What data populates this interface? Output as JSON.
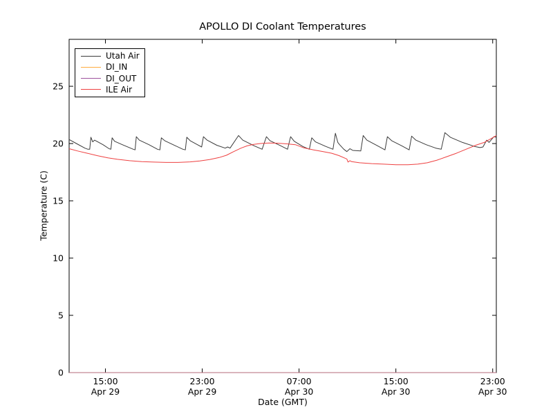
{
  "figure": {
    "background_color": "#ffffff",
    "axes_color": "#000000"
  },
  "chart_data": {
    "type": "line",
    "title": "APOLLO DI Coolant Temperatures",
    "xlabel": "Date (GMT)",
    "ylabel": "Temperature (C)",
    "grid": false,
    "legend_position": "upper left",
    "x_unit": "hours since Apr 29 00:00 GMT",
    "xlim": [
      12.0,
      47.3
    ],
    "ylim": [
      0,
      29.1
    ],
    "yticks": [
      {
        "value": 0,
        "label": "0"
      },
      {
        "value": 5,
        "label": "5"
      },
      {
        "value": 10,
        "label": "10"
      },
      {
        "value": 15,
        "label": "15"
      },
      {
        "value": 20,
        "label": "20"
      },
      {
        "value": 25,
        "label": "25"
      }
    ],
    "xticks": [
      {
        "value": 15,
        "time": "15:00",
        "date": "Apr 29"
      },
      {
        "value": 23,
        "time": "23:00",
        "date": "Apr 29"
      },
      {
        "value": 31,
        "time": "07:00",
        "date": "Apr 30"
      },
      {
        "value": 39,
        "time": "15:00",
        "date": "Apr 30"
      },
      {
        "value": 47,
        "time": "23:00",
        "date": "Apr 30"
      }
    ],
    "series": [
      {
        "name": "Utah Air",
        "color": "#3a3a3a",
        "points": [
          [
            12.0,
            20.35
          ],
          [
            12.6,
            20.0
          ],
          [
            13.3,
            19.6
          ],
          [
            13.55,
            19.5
          ],
          [
            13.7,
            19.5
          ],
          [
            13.8,
            20.55
          ],
          [
            13.95,
            20.15
          ],
          [
            14.1,
            20.3
          ],
          [
            14.8,
            19.9
          ],
          [
            15.3,
            19.55
          ],
          [
            15.45,
            19.5
          ],
          [
            15.55,
            20.5
          ],
          [
            15.75,
            20.2
          ],
          [
            16.4,
            19.9
          ],
          [
            17.3,
            19.5
          ],
          [
            17.45,
            19.45
          ],
          [
            17.55,
            20.6
          ],
          [
            17.8,
            20.3
          ],
          [
            18.6,
            19.9
          ],
          [
            19.3,
            19.5
          ],
          [
            19.5,
            19.45
          ],
          [
            19.62,
            20.5
          ],
          [
            19.9,
            20.25
          ],
          [
            20.8,
            19.8
          ],
          [
            21.4,
            19.5
          ],
          [
            21.6,
            19.45
          ],
          [
            21.72,
            20.55
          ],
          [
            22.0,
            20.25
          ],
          [
            22.6,
            19.9
          ],
          [
            22.95,
            19.7
          ],
          [
            23.1,
            20.6
          ],
          [
            23.4,
            20.3
          ],
          [
            24.2,
            19.85
          ],
          [
            24.9,
            19.6
          ],
          [
            25.1,
            19.7
          ],
          [
            25.3,
            19.6
          ],
          [
            26.0,
            20.7
          ],
          [
            26.35,
            20.3
          ],
          [
            27.3,
            19.8
          ],
          [
            27.95,
            19.5
          ],
          [
            28.3,
            20.6
          ],
          [
            28.6,
            20.25
          ],
          [
            29.5,
            19.8
          ],
          [
            30.05,
            19.5
          ],
          [
            30.3,
            20.6
          ],
          [
            30.6,
            20.2
          ],
          [
            31.3,
            19.75
          ],
          [
            31.85,
            19.5
          ],
          [
            32.05,
            20.5
          ],
          [
            32.35,
            20.15
          ],
          [
            33.2,
            19.75
          ],
          [
            33.8,
            19.5
          ],
          [
            34.0,
            20.9
          ],
          [
            34.2,
            20.1
          ],
          [
            34.35,
            19.9
          ],
          [
            34.7,
            19.5
          ],
          [
            34.95,
            19.3
          ],
          [
            35.2,
            19.55
          ],
          [
            35.45,
            19.4
          ],
          [
            36.1,
            19.35
          ],
          [
            36.3,
            20.7
          ],
          [
            36.6,
            20.3
          ],
          [
            37.5,
            19.8
          ],
          [
            38.1,
            19.45
          ],
          [
            38.3,
            20.6
          ],
          [
            38.65,
            20.25
          ],
          [
            39.5,
            19.8
          ],
          [
            40.1,
            19.45
          ],
          [
            40.3,
            20.65
          ],
          [
            40.65,
            20.3
          ],
          [
            41.5,
            19.9
          ],
          [
            42.3,
            19.6
          ],
          [
            42.75,
            19.5
          ],
          [
            43.05,
            20.95
          ],
          [
            43.5,
            20.55
          ],
          [
            44.5,
            20.1
          ],
          [
            45.5,
            19.75
          ],
          [
            45.95,
            19.65
          ],
          [
            46.2,
            19.7
          ],
          [
            46.5,
            20.3
          ],
          [
            46.7,
            20.1
          ],
          [
            47.1,
            20.6
          ],
          [
            47.3,
            20.55
          ]
        ]
      },
      {
        "name": "DI_IN",
        "color": "#ffaa3c",
        "points": [
          [
            12.0,
            0
          ],
          [
            47.3,
            0
          ]
        ]
      },
      {
        "name": "DI_OUT",
        "color": "#9c4f9c",
        "points": [
          [
            12.0,
            0
          ],
          [
            47.3,
            0
          ]
        ]
      },
      {
        "name": "ILE Air",
        "color": "#ee3f3f",
        "points": [
          [
            12.0,
            19.55
          ],
          [
            12.7,
            19.35
          ],
          [
            13.5,
            19.15
          ],
          [
            14.3,
            18.95
          ],
          [
            15.2,
            18.75
          ],
          [
            16.0,
            18.62
          ],
          [
            17.0,
            18.5
          ],
          [
            18.0,
            18.42
          ],
          [
            19.0,
            18.38
          ],
          [
            20.0,
            18.35
          ],
          [
            21.0,
            18.35
          ],
          [
            22.0,
            18.4
          ],
          [
            22.8,
            18.48
          ],
          [
            23.6,
            18.6
          ],
          [
            24.4,
            18.78
          ],
          [
            25.0,
            18.98
          ],
          [
            25.6,
            19.3
          ],
          [
            26.2,
            19.6
          ],
          [
            26.7,
            19.8
          ],
          [
            27.2,
            19.92
          ],
          [
            27.8,
            20.0
          ],
          [
            28.5,
            20.05
          ],
          [
            29.2,
            20.03
          ],
          [
            30.0,
            19.97
          ],
          [
            30.7,
            19.9
          ],
          [
            31.4,
            19.62
          ],
          [
            32.2,
            19.45
          ],
          [
            33.0,
            19.3
          ],
          [
            33.7,
            19.15
          ],
          [
            34.3,
            18.95
          ],
          [
            34.8,
            18.72
          ],
          [
            34.95,
            18.65
          ],
          [
            35.05,
            18.38
          ],
          [
            35.2,
            18.5
          ],
          [
            35.35,
            18.42
          ],
          [
            36.0,
            18.32
          ],
          [
            37.0,
            18.25
          ],
          [
            38.0,
            18.2
          ],
          [
            39.0,
            18.15
          ],
          [
            40.0,
            18.15
          ],
          [
            40.8,
            18.2
          ],
          [
            41.6,
            18.32
          ],
          [
            42.4,
            18.55
          ],
          [
            43.2,
            18.85
          ],
          [
            44.0,
            19.15
          ],
          [
            44.8,
            19.5
          ],
          [
            45.6,
            19.85
          ],
          [
            46.3,
            20.1
          ],
          [
            46.9,
            20.45
          ],
          [
            47.3,
            20.7
          ]
        ]
      }
    ]
  }
}
